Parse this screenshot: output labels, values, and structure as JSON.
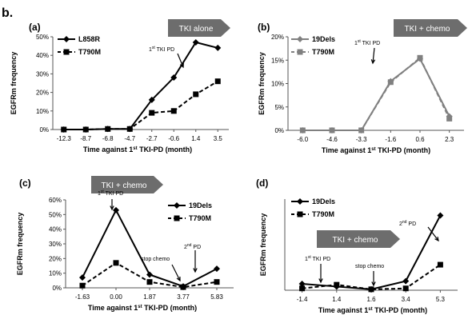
{
  "figure_label": "b.",
  "colors": {
    "line": "#000000",
    "gray_series": "#808080",
    "arrow_fill": "#6d6d6d",
    "arrow_text": "#ffffff",
    "axis": "#555555"
  },
  "chart_data": [
    {
      "type": "line",
      "panel": "(a)",
      "categories": [
        "-12.3",
        "-8.7",
        "-6.8",
        "-4.7",
        "-2.7",
        "-0.6",
        "1.4",
        "3.5"
      ],
      "series": [
        {
          "name": "L858R",
          "marker": "diamond",
          "dash": false,
          "values": [
            0,
            0,
            0.3,
            0.3,
            16,
            28,
            47,
            44
          ]
        },
        {
          "name": "T790M",
          "marker": "square",
          "dash": true,
          "values": [
            0,
            0,
            0.3,
            0.3,
            9,
            10,
            19,
            26
          ]
        }
      ],
      "yticks": [
        "0%",
        "10%",
        "20%",
        "30%",
        "40%",
        "50%"
      ],
      "ylim": [
        0,
        50
      ],
      "xlabel_parts": [
        "Time against 1",
        "st",
        " TKI-PD (month)"
      ],
      "ylabel": "EGFRm frequency",
      "banner": "TKI alone",
      "annotations": [
        {
          "text": "1",
          "sup": "st",
          "rest": " TKI PD"
        }
      ],
      "legend": "top-left"
    },
    {
      "type": "line",
      "panel": "(b)",
      "categories": [
        "-6.0",
        "-4.6",
        "-3.3",
        "-1.6",
        "0.6",
        "2.3"
      ],
      "series": [
        {
          "name": "19Dels",
          "marker": "diamond",
          "dash": false,
          "color": "gray",
          "values": [
            0,
            0,
            0,
            10.5,
            15.3,
            3
          ]
        },
        {
          "name": "T790M",
          "marker": "square",
          "dash": true,
          "color": "gray",
          "values": [
            0,
            0,
            0,
            10.3,
            15.5,
            2.5
          ]
        }
      ],
      "yticks": [
        "0%",
        "5%",
        "10%",
        "15%",
        "20%"
      ],
      "ylim": [
        0,
        20
      ],
      "xlabel_parts": [
        "Time against 1",
        "st",
        " TKI-PD (month)"
      ],
      "ylabel": "EGFRm frequency",
      "banner": "TKI + chemo",
      "annotations": [
        {
          "text": "1",
          "sup": "st",
          "rest": " TKI PD"
        }
      ],
      "legend": "top-left"
    },
    {
      "type": "line",
      "panel": "(c)",
      "categories": [
        "-1.63",
        "0.00",
        "1.87",
        "3.77",
        "5.83"
      ],
      "series": [
        {
          "name": "19Dels",
          "marker": "diamond",
          "dash": false,
          "values": [
            7,
            53,
            9,
            1,
            13
          ]
        },
        {
          "name": "T790M",
          "marker": "square",
          "dash": true,
          "values": [
            1.5,
            17,
            4,
            0.5,
            4
          ]
        }
      ],
      "yticks": [
        "0%",
        "10%",
        "20%",
        "30%",
        "40%",
        "50%",
        "60%"
      ],
      "ylim": [
        0,
        60
      ],
      "xlabel_parts": [
        "Time against 1",
        "st",
        " TKI-PD (month)"
      ],
      "ylabel": "EGFRm frequency",
      "banner": "TKI + chemo",
      "annotations": [
        {
          "text": "1",
          "sup": "st",
          "rest": " TKI PD"
        },
        {
          "text": "2",
          "sup": "nd",
          "rest": " PD"
        },
        {
          "text": "stop chemo",
          "sup": "",
          "rest": ""
        }
      ],
      "legend": "top-right"
    },
    {
      "type": "line",
      "panel": "(d)",
      "categories": [
        "-1.4",
        "1.4",
        "1.6",
        "3.4",
        "5.3"
      ],
      "series": [
        {
          "name": "19Dels",
          "marker": "diamond",
          "dash": false,
          "values": [
            3.5,
            2,
            0.5,
            5,
            41
          ]
        },
        {
          "name": "T790M",
          "marker": "square",
          "dash": true,
          "values": [
            1,
            3,
            0.5,
            1,
            14
          ]
        }
      ],
      "yticks": [],
      "ylim": [
        0,
        50
      ],
      "xlabel_parts": [
        "Time against 1",
        "st",
        " TKI-PD (month)"
      ],
      "ylabel": "EGFRm frequency",
      "banner": "TKI + chemo",
      "annotations": [
        {
          "text": "1",
          "sup": "st",
          "rest": " TKI PD"
        },
        {
          "text": "stop chemo",
          "sup": "",
          "rest": ""
        },
        {
          "text": "2",
          "sup": "nd",
          "rest": " PD"
        }
      ],
      "legend": "top-left"
    }
  ]
}
